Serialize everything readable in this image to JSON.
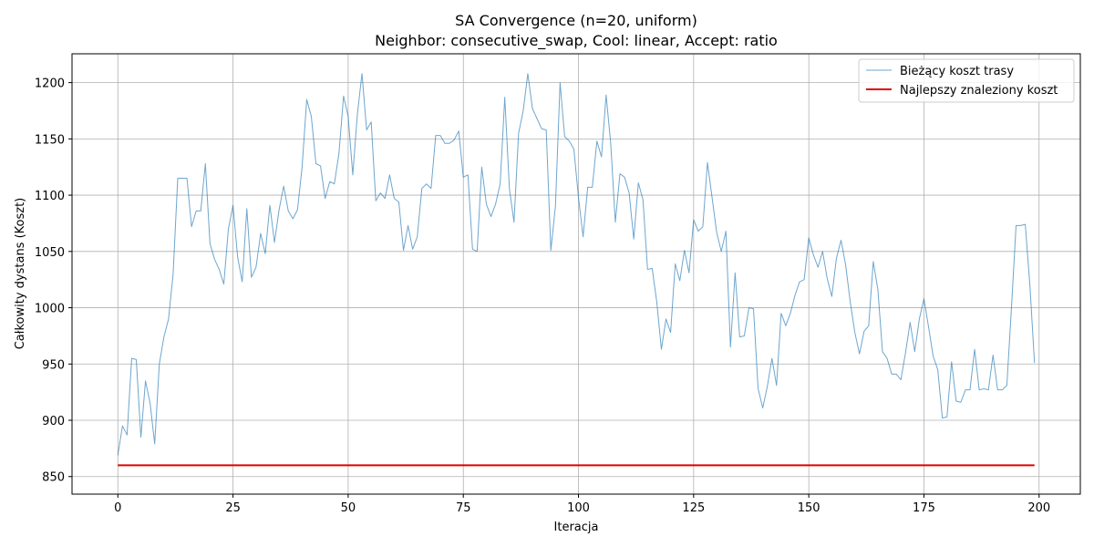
{
  "chart_data": {
    "type": "line",
    "title_line1": "SA Convergence (n=20, uniform)",
    "title_line2": "Neighbor: consecutive_swap, Cool: linear, Accept: ratio",
    "xlabel": "Iteracja",
    "ylabel": "Całkowity dystans (Koszt)",
    "xlim": [
      -9.95,
      208.95
    ],
    "ylim": [
      834.4,
      1225.6
    ],
    "xticks": [
      0,
      25,
      50,
      75,
      100,
      125,
      150,
      175,
      200
    ],
    "yticks": [
      850,
      900,
      950,
      1000,
      1050,
      1100,
      1150,
      1200
    ],
    "grid": true,
    "legend_position": "top-right",
    "series": [
      {
        "name": "Bieżący koszt trasy",
        "color": "#1f77b4",
        "values": [
          869,
          895,
          887,
          955,
          954,
          885,
          935,
          915,
          879,
          950,
          974,
          990,
          1030,
          1115,
          1115,
          1115,
          1072,
          1086,
          1086,
          1128,
          1057,
          1043,
          1034,
          1021,
          1070,
          1091,
          1045,
          1023,
          1088,
          1027,
          1036,
          1066,
          1048,
          1091,
          1058,
          1087,
          1108,
          1086,
          1079,
          1087,
          1125,
          1185,
          1170,
          1128,
          1126,
          1097,
          1112,
          1110,
          1137,
          1188,
          1170,
          1118,
          1172,
          1208,
          1158,
          1165,
          1095,
          1102,
          1097,
          1118,
          1097,
          1094,
          1051,
          1073,
          1052,
          1063,
          1106,
          1110,
          1106,
          1153,
          1153,
          1146,
          1146,
          1149,
          1157,
          1116,
          1118,
          1052,
          1050,
          1125,
          1092,
          1081,
          1092,
          1110,
          1187,
          1106,
          1076,
          1155,
          1175,
          1208,
          1177,
          1168,
          1159,
          1158,
          1051,
          1090,
          1200,
          1152,
          1148,
          1141,
          1098,
          1063,
          1107,
          1107,
          1148,
          1134,
          1189,
          1146,
          1076,
          1119,
          1116,
          1102,
          1061,
          1111,
          1096,
          1034,
          1035,
          1005,
          963,
          990,
          978,
          1039,
          1024,
          1051,
          1031,
          1078,
          1068,
          1072,
          1129,
          1098,
          1067,
          1050,
          1068,
          965,
          1031,
          974,
          975,
          1000,
          999,
          928,
          911,
          930,
          955,
          931,
          995,
          984,
          995,
          1011,
          1023,
          1025,
          1062,
          1047,
          1036,
          1050,
          1026,
          1010,
          1044,
          1060,
          1038,
          1005,
          978,
          959,
          979,
          984,
          1041,
          1016,
          961,
          955,
          941,
          941,
          936,
          960,
          987,
          961,
          990,
          1008,
          983,
          957,
          945,
          902,
          903,
          952,
          917,
          916,
          927,
          927,
          963,
          927,
          928,
          927,
          958,
          927,
          927,
          931,
          1000,
          1073,
          1073,
          1074,
          1020,
          951
        ]
      },
      {
        "name": "Najlepszy znaleziony koszt",
        "color": "#e00000",
        "values_const": 860,
        "x_range": [
          0,
          199
        ]
      }
    ]
  }
}
